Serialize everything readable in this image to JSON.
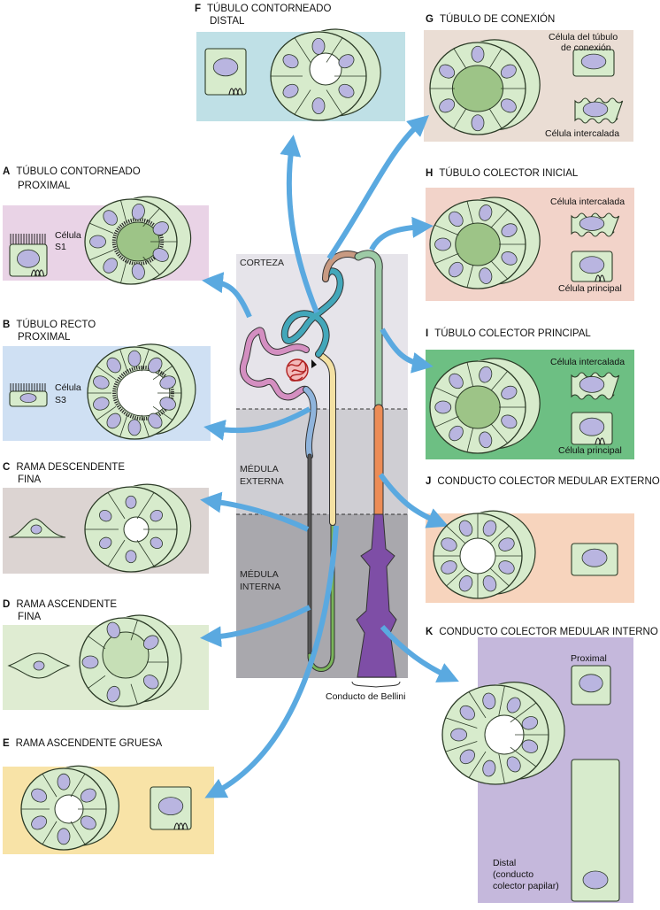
{
  "colors": {
    "cortex_bg": "#e6e4ea",
    "outer_medulla_bg": "#cfced3",
    "inner_medulla_bg": "#a9a8ad",
    "cell_fill": "#d7ebcc",
    "cell_stroke": "#2b3a26",
    "lumen_fill": "#9dc487",
    "nucleus_fill": "#b9b5e0",
    "arrow_fill": "#5aa9e0",
    "panel_F": "#bfe0e6",
    "panel_G": "#eaddd4",
    "panel_A": "#e9d3e6",
    "panel_H": "#f2d3c9",
    "panel_B": "#cfe0f3",
    "panel_I": "#6dbf83",
    "panel_C": "#dcd4d2",
    "panel_J": "#f7d4bd",
    "panel_D": "#dfecd2",
    "panel_K": "#c5b8dc",
    "panel_E": "#f8e3a7",
    "tube_proximal": "#d48fc1",
    "tube_straight": "#8fb4dc",
    "tube_thin": "#555555",
    "tube_thin_asc": "#7ab55a",
    "tube_thick_asc": "#f4e1a3",
    "tube_distal": "#43a7ba",
    "tube_connecting": "#c89a82",
    "tube_collecting": "#9dcaa6",
    "tube_outer_medullary": "#ec8c56",
    "tube_inner_medullary": "#7e4ea6",
    "glomerulus": "#e0494a"
  },
  "zones": {
    "cortex": "CORTEZA",
    "outer_medulla_1": "MÉDULA",
    "outer_medulla_2": "EXTERNA",
    "inner_medulla_1": "MÉDULA",
    "inner_medulla_2": "INTERNA",
    "bellini": "Conducto de Bellini"
  },
  "segments": {
    "A": {
      "letter": "A",
      "title_1": "TÚBULO CONTORNEADO",
      "title_2": "PROXIMAL",
      "cell_1": "Célula",
      "cell_2": "S1"
    },
    "B": {
      "letter": "B",
      "title_1": "TÚBULO RECTO",
      "title_2": "PROXIMAL",
      "cell_1": "Célula",
      "cell_2": "S3"
    },
    "C": {
      "letter": "C",
      "title_1": "RAMA DESCENDENTE",
      "title_2": "FINA"
    },
    "D": {
      "letter": "D",
      "title_1": "RAMA ASCENDENTE",
      "title_2": "FINA"
    },
    "E": {
      "letter": "E",
      "title_1": "RAMA ASCENDENTE GRUESA"
    },
    "F": {
      "letter": "F",
      "title_1": "TÚBULO CONTORNEADO",
      "title_2": "DISTAL"
    },
    "G": {
      "letter": "G",
      "title_1": "TÚBULO DE CONEXIÓN",
      "cell_a_1": "Célula del túbulo",
      "cell_a_2": "de conexión",
      "cell_b": "Célula intercalada"
    },
    "H": {
      "letter": "H",
      "title_1": "TÚBULO COLECTOR INICIAL",
      "cell_a": "Célula intercalada",
      "cell_b": "Célula principal"
    },
    "I": {
      "letter": "I",
      "title_1": "TÚBULO COLECTOR PRINCIPAL",
      "cell_a": "Célula intercalada",
      "cell_b": "Célula principal"
    },
    "J": {
      "letter": "J",
      "title_1": "CONDUCTO COLECTOR MEDULAR EXTERNO"
    },
    "K": {
      "letter": "K",
      "title_1": "CONDUCTO COLECTOR MEDULAR INTERNO",
      "cell_a": "Proximal",
      "cell_b_1": "Distal",
      "cell_b_2": "(conducto",
      "cell_b_3": "colector papilar)"
    }
  }
}
